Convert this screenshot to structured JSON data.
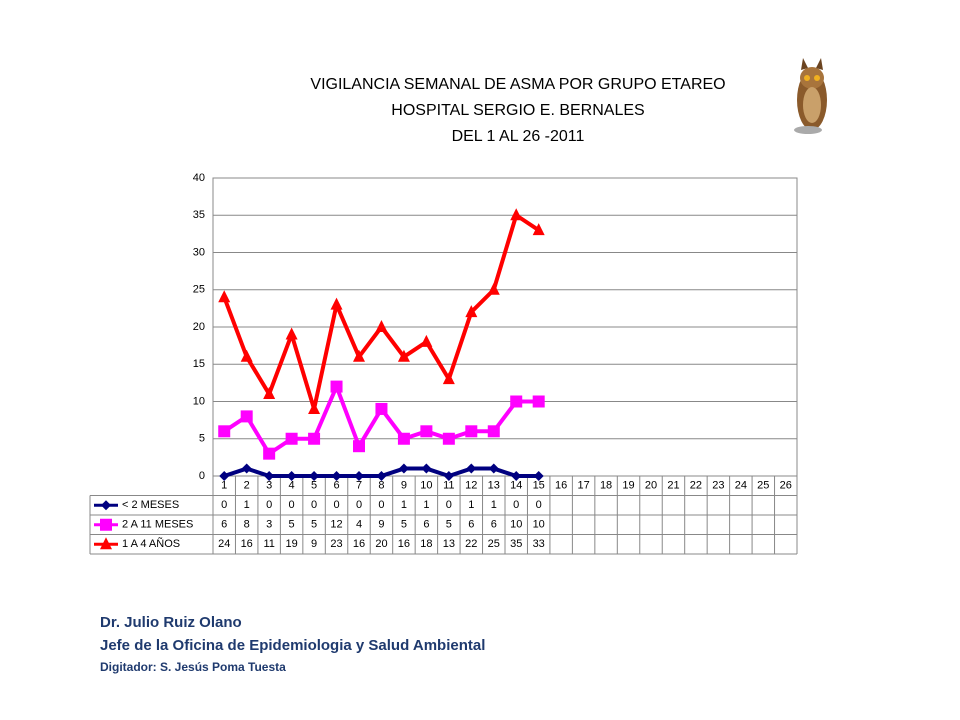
{
  "chart_data": {
    "type": "line",
    "title_lines": [
      "VIGILANCIA SEMANAL DE ASMA POR GRUPO ETAREO",
      "HOSPITAL SERGIO E. BERNALES",
      "DEL 1 AL 26 -2011"
    ],
    "categories": [
      "1",
      "2",
      "3",
      "4",
      "5",
      "6",
      "7",
      "8",
      "9",
      "10",
      "11",
      "12",
      "13",
      "14",
      "15",
      "16",
      "17",
      "18",
      "19",
      "20",
      "21",
      "22",
      "23",
      "24",
      "25",
      "26"
    ],
    "series": [
      {
        "name": "< 2 MESES",
        "color": "#000080",
        "marker": "diamond",
        "values": [
          0,
          1,
          0,
          0,
          0,
          0,
          0,
          0,
          1,
          1,
          0,
          1,
          1,
          0,
          0,
          null,
          null,
          null,
          null,
          null,
          null,
          null,
          null,
          null,
          null,
          null
        ]
      },
      {
        "name": "2 A 11 MESES",
        "color": "#ff00ff",
        "marker": "square",
        "values": [
          6,
          8,
          3,
          5,
          5,
          12,
          4,
          9,
          5,
          6,
          5,
          6,
          6,
          10,
          10,
          null,
          null,
          null,
          null,
          null,
          null,
          null,
          null,
          null,
          null,
          null
        ]
      },
      {
        "name": "1 A 4 AÑOS",
        "color": "#ff0000",
        "marker": "triangle",
        "values": [
          24,
          16,
          11,
          19,
          9,
          23,
          16,
          20,
          16,
          18,
          13,
          22,
          25,
          35,
          33,
          null,
          null,
          null,
          null,
          null,
          null,
          null,
          null,
          null,
          null,
          null
        ]
      }
    ],
    "ylim": [
      0,
      40
    ],
    "yticks": [
      0,
      5,
      10,
      15,
      20,
      25,
      30,
      35,
      40
    ],
    "grid": true,
    "data_table": true
  },
  "footer": [
    "Dr.  Julio Ruiz Olano",
    "Jefe de la Oficina de Epidemiologia y  Salud Ambiental",
    "Digitador: S. Jesús Poma Tuesta"
  ]
}
